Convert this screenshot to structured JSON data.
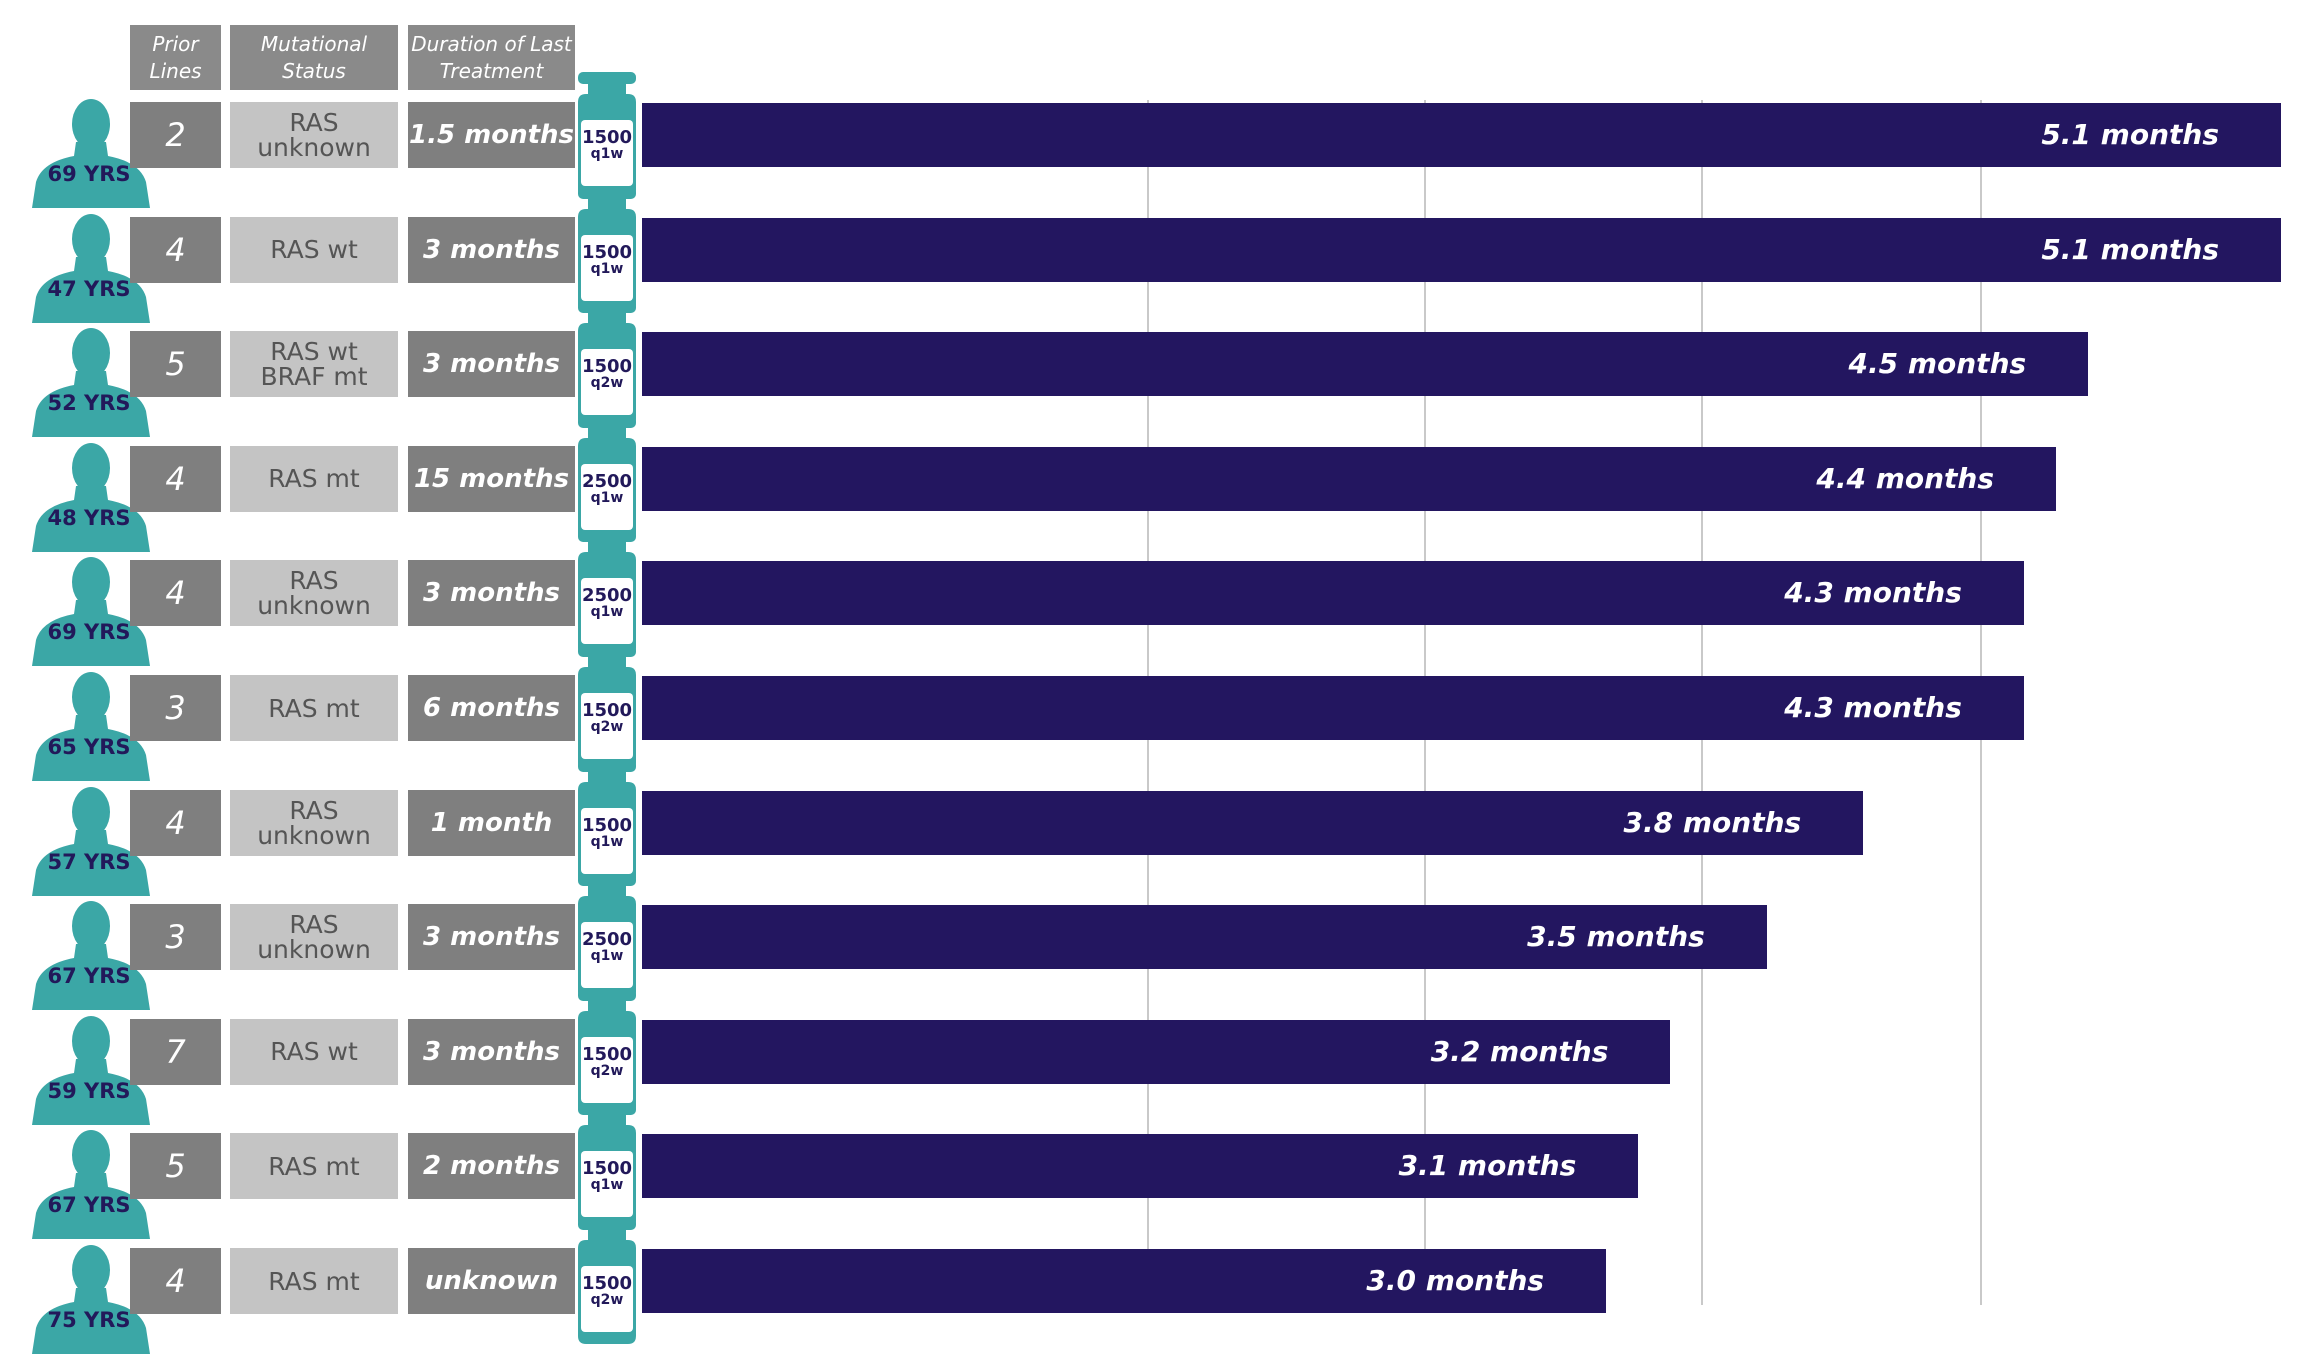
{
  "headers": {
    "prior_lines": "Prior Lines",
    "mutational_status": "Mutational Status",
    "duration_last": "Duration of Last Treatment"
  },
  "colors": {
    "bar": "#231660",
    "icon": "#3ba7a6",
    "text_dark": "#22195a"
  },
  "chart_data": {
    "type": "bar",
    "orientation": "horizontal",
    "title": "",
    "xlabel": "",
    "ylabel": "",
    "xlim": [
      0,
      5.1
    ],
    "grid": true,
    "categories": [
      "69 YRS",
      "47 YRS",
      "52 YRS",
      "48 YRS",
      "69 YRS",
      "65 YRS",
      "57 YRS",
      "67 YRS",
      "59 YRS",
      "67 YRS",
      "75 YRS"
    ],
    "values": [
      5.1,
      5.1,
      4.5,
      4.4,
      4.3,
      4.3,
      3.8,
      3.5,
      3.2,
      3.1,
      3.0
    ],
    "value_labels": [
      "5.1 months",
      "5.1 months",
      "4.5 months",
      "4.4 months",
      "4.3 months",
      "4.3 months",
      "3.8 months",
      "3.5 months",
      "3.2 months",
      "3.1 months",
      "3.0 months"
    ],
    "grid_values": [
      2,
      3,
      4,
      5
    ]
  },
  "patients": [
    {
      "age": "69 YRS",
      "prior": "2",
      "mut": "RAS unknown",
      "dur": "1.5 months",
      "dose": "1500",
      "sched": "q1w"
    },
    {
      "age": "47 YRS",
      "prior": "4",
      "mut": "RAS wt",
      "dur": "3 months",
      "dose": "1500",
      "sched": "q1w"
    },
    {
      "age": "52 YRS",
      "prior": "5",
      "mut": "RAS wt BRAF mt",
      "dur": "3 months",
      "dose": "1500",
      "sched": "q2w"
    },
    {
      "age": "48 YRS",
      "prior": "4",
      "mut": "RAS mt",
      "dur": "15 months",
      "dose": "2500",
      "sched": "q1w"
    },
    {
      "age": "69 YRS",
      "prior": "4",
      "mut": "RAS unknown",
      "dur": "3 months",
      "dose": "2500",
      "sched": "q1w"
    },
    {
      "age": "65 YRS",
      "prior": "3",
      "mut": "RAS mt",
      "dur": "6 months",
      "dose": "1500",
      "sched": "q2w"
    },
    {
      "age": "57 YRS",
      "prior": "4",
      "mut": "RAS unknown",
      "dur": "1 month",
      "dose": "1500",
      "sched": "q1w"
    },
    {
      "age": "67 YRS",
      "prior": "3",
      "mut": "RAS unknown",
      "dur": "3 months",
      "dose": "2500",
      "sched": "q1w"
    },
    {
      "age": "59 YRS",
      "prior": "7",
      "mut": "RAS wt",
      "dur": "3 months",
      "dose": "1500",
      "sched": "q2w"
    },
    {
      "age": "67 YRS",
      "prior": "5",
      "mut": "RAS mt",
      "dur": "2 months",
      "dose": "1500",
      "sched": "q1w"
    },
    {
      "age": "75 YRS",
      "prior": "4",
      "mut": "RAS mt",
      "dur": "unknown",
      "dose": "1500",
      "sched": "q2w"
    }
  ]
}
